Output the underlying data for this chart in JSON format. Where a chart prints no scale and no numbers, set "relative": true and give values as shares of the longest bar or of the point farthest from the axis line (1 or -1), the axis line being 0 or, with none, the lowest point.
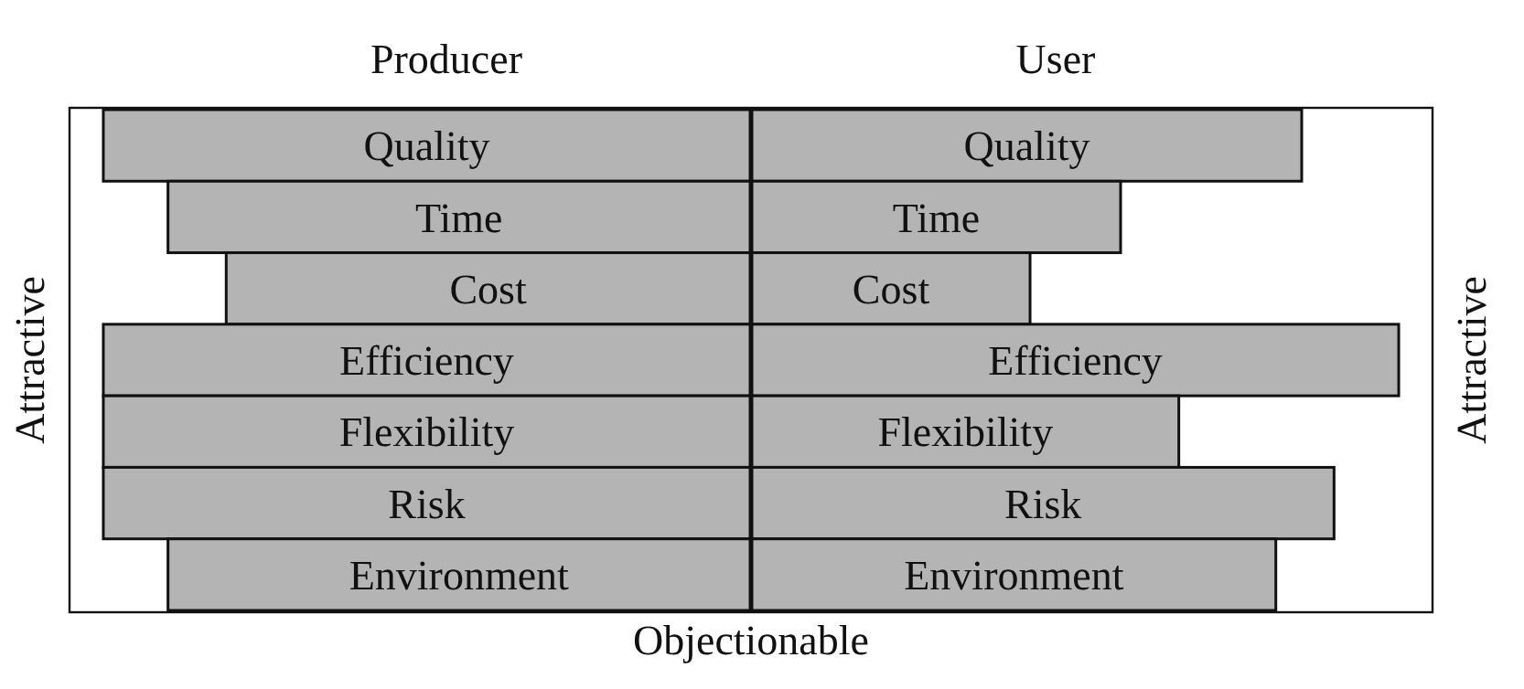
{
  "chart_data": [
    {
      "type": "bar",
      "orientation": "horizontal",
      "relative": true,
      "title": "Producer",
      "xlabel": "Objectionable",
      "ylabel": "Attractive",
      "color": "#b4b4b4",
      "categories": [
        "Quality",
        "Time",
        "Cost",
        "Efficiency",
        "Flexibility",
        "Risk",
        "Environment"
      ],
      "values": [
        -1,
        -0.9,
        -0.81,
        -1,
        -1,
        -1,
        -0.9
      ]
    },
    {
      "type": "bar",
      "orientation": "horizontal",
      "relative": true,
      "title": "User",
      "y2label": "Attractive",
      "color": "#b4b4b4",
      "categories": [
        "Quality",
        "Time",
        "Cost",
        "Efficiency",
        "Flexibility",
        "Risk",
        "Environment"
      ],
      "values": [
        0.85,
        0.57,
        0.43,
        1,
        0.66,
        0.9,
        0.81
      ]
    }
  ]
}
